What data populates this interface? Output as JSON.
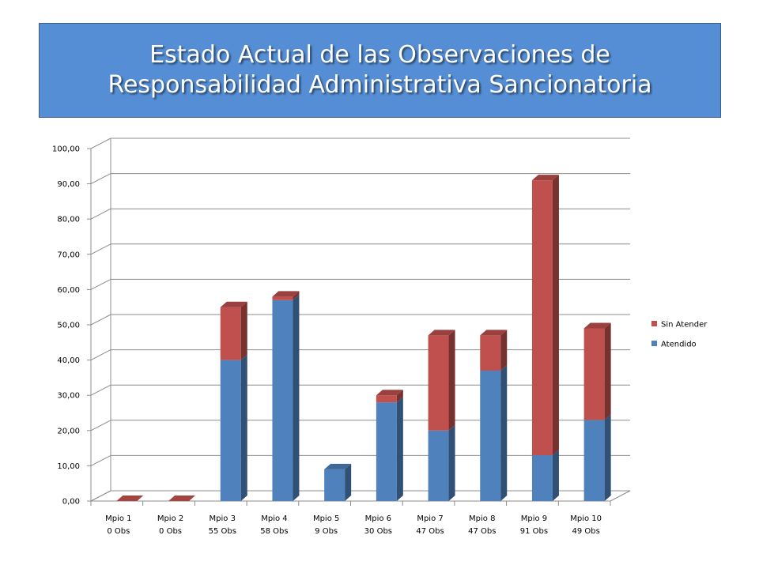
{
  "title": {
    "line1": "Estado Actual de las Observaciones de",
    "line2": "Responsabilidad Administrativa Sancionatoria"
  },
  "colors": {
    "title_background": "#558ed5",
    "atendido": "#4f81bd",
    "sin_atender": "#c0504d"
  },
  "chart_data": {
    "type": "bar",
    "stacked": true,
    "three_d": true,
    "categories": [
      [
        "Mpio 1",
        "0 Obs"
      ],
      [
        "Mpio 2",
        "0 Obs"
      ],
      [
        "Mpio 3",
        "55 Obs"
      ],
      [
        "Mpio 4",
        "58 Obs"
      ],
      [
        "Mpio 5",
        "9 Obs"
      ],
      [
        "Mpio 6",
        "30 Obs"
      ],
      [
        "Mpio 7",
        "47 Obs"
      ],
      [
        "Mpio 8",
        "47 Obs"
      ],
      [
        "Mpio 9",
        "91 Obs"
      ],
      [
        "Mpio 10",
        "49 Obs"
      ]
    ],
    "series": [
      {
        "name": "Atendido",
        "values": [
          0,
          0,
          40,
          57,
          9,
          28,
          20,
          37,
          13,
          23
        ]
      },
      {
        "name": "Sin Atender",
        "values": [
          0,
          0,
          15,
          1,
          0,
          2,
          27,
          10,
          78,
          26
        ]
      }
    ],
    "yticks": [
      "0,00",
      "10,00",
      "20,00",
      "30,00",
      "40,00",
      "50,00",
      "60,00",
      "70,00",
      "80,00",
      "90,00",
      "100,00"
    ],
    "ylim": [
      0,
      100
    ],
    "grid": true,
    "legend_position": "right",
    "legend_entries": [
      "Sin Atender",
      "Atendido"
    ]
  }
}
